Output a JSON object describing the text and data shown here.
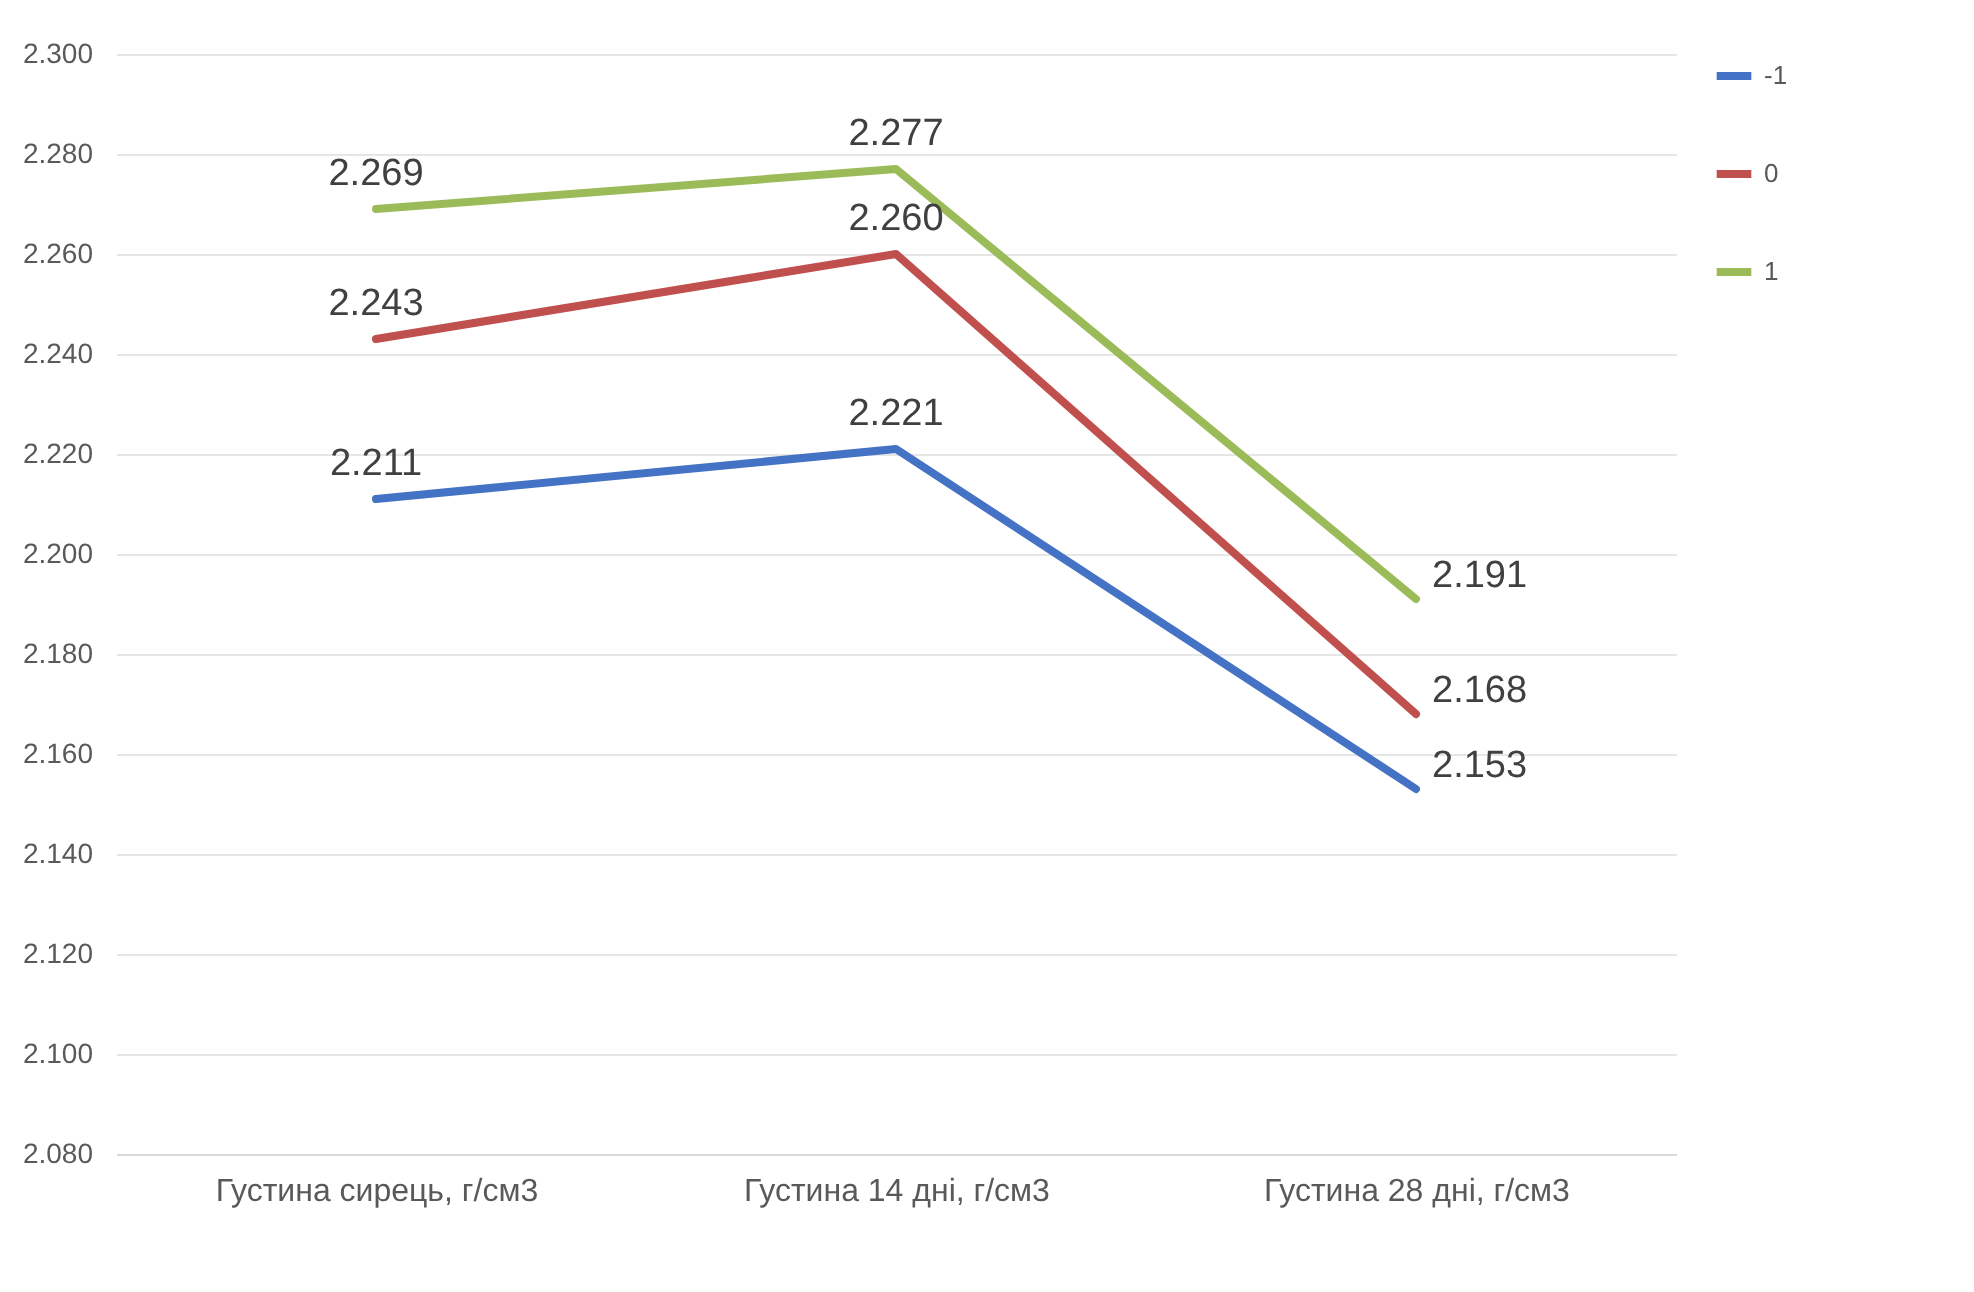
{
  "chart_data": {
    "type": "line",
    "categories": [
      "Густина сирець, г/см3",
      "Густина 14 дні, г/см3",
      "Густина 28 дні, г/см3"
    ],
    "ylim": [
      2.08,
      2.3
    ],
    "yticks": [
      {
        "value": 2.08,
        "label": "2.080"
      },
      {
        "value": 2.1,
        "label": "2.100"
      },
      {
        "value": 2.12,
        "label": "2.120"
      },
      {
        "value": 2.14,
        "label": "2.140"
      },
      {
        "value": 2.16,
        "label": "2.160"
      },
      {
        "value": 2.18,
        "label": "2.180"
      },
      {
        "value": 2.2,
        "label": "2.200"
      },
      {
        "value": 2.22,
        "label": "2.220"
      },
      {
        "value": 2.24,
        "label": "2.240"
      },
      {
        "value": 2.26,
        "label": "2.260"
      },
      {
        "value": 2.28,
        "label": "2.280"
      },
      {
        "value": 2.3,
        "label": "2.300"
      }
    ],
    "grid": "y",
    "legend": "right",
    "marker": "none",
    "line_style": "solid",
    "series": [
      {
        "name": "-1",
        "color": "#4472c4",
        "values": [
          2.211,
          2.221,
          2.153
        ],
        "value_labels": [
          "2.211",
          "2.221",
          "2.153"
        ]
      },
      {
        "name": "0",
        "color": "#c0504d",
        "values": [
          2.243,
          2.26,
          2.168
        ],
        "value_labels": [
          "2.243",
          "2.260",
          "2.168"
        ]
      },
      {
        "name": "1",
        "color": "#9bbb59",
        "values": [
          2.269,
          2.277,
          2.191
        ],
        "value_labels": [
          "2.269",
          "2.277",
          "2.191"
        ]
      }
    ]
  }
}
